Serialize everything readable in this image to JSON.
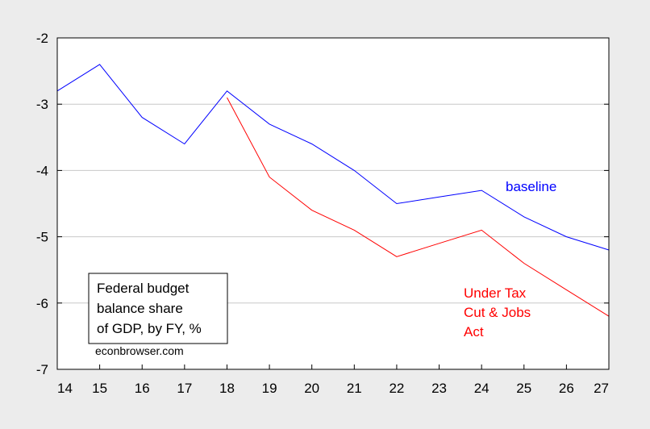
{
  "chart_data": {
    "type": "line",
    "x": [
      14,
      15,
      16,
      17,
      18,
      19,
      20,
      21,
      22,
      23,
      24,
      25,
      26,
      27
    ],
    "xlim": [
      14,
      27
    ],
    "ylim": [
      -7,
      -2
    ],
    "yticks": [
      -2,
      -3,
      -4,
      -5,
      -6,
      -7
    ],
    "xticks": [
      14,
      15,
      16,
      17,
      18,
      19,
      20,
      21,
      22,
      23,
      24,
      25,
      26,
      27
    ],
    "grid": true,
    "series": [
      {
        "name": "baseline",
        "color": "#0000ff",
        "x": [
          14,
          15,
          16,
          17,
          18,
          19,
          20,
          21,
          22,
          23,
          24,
          25,
          26,
          27
        ],
        "values": [
          -2.8,
          -2.4,
          -3.2,
          -3.6,
          -2.8,
          -3.3,
          -3.6,
          -4.0,
          -4.5,
          -4.4,
          -4.3,
          -4.7,
          -5.0,
          -5.2
        ]
      },
      {
        "name": "Under Tax Cut & Jobs Act",
        "label_lines": [
          "Under Tax",
          "Cut & Jobs",
          "Act"
        ],
        "color": "#ff0000",
        "x": [
          18,
          19,
          20,
          21,
          22,
          23,
          24,
          25,
          26,
          27
        ],
        "values": [
          -2.9,
          -4.1,
          -4.6,
          -4.9,
          -5.3,
          -5.1,
          -4.9,
          -5.4,
          -5.8,
          -6.2
        ]
      }
    ],
    "annotation": {
      "lines": [
        "Federal budget",
        "balance share",
        "of GDP, by FY, %"
      ],
      "source": "econbrowser.com"
    }
  }
}
